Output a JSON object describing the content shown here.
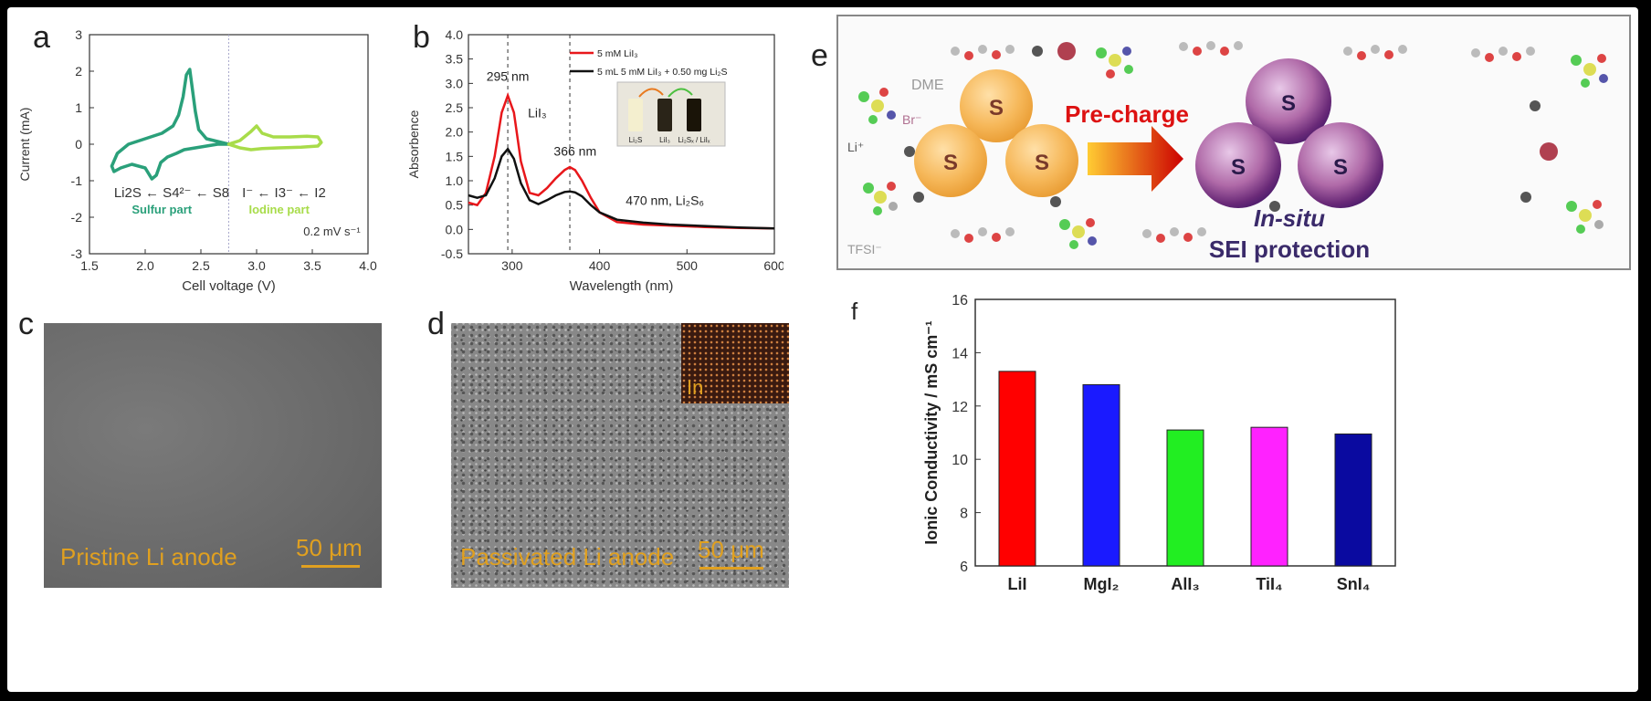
{
  "panel_labels": {
    "a": "a",
    "b": "b",
    "c": "c",
    "d": "d",
    "e": "e",
    "f": "f"
  },
  "colors": {
    "cv_sulfur": "#2aa07a",
    "cv_iodine": "#a8dc4a",
    "uv_red": "#e8171b",
    "uv_black": "#111111",
    "bar_LiI": "#ff0000",
    "bar_MgI2": "#1a1aff",
    "bar_AlI3": "#22ee22",
    "bar_TiI4": "#ff22ff",
    "bar_SnI4": "#0a0aa0",
    "label_gold": "#e0a020"
  },
  "chart_data": [
    {
      "id": "a",
      "type": "line",
      "xlabel": "Cell voltage (V)",
      "ylabel": "Current (mA)",
      "xlim": [
        1.5,
        4.0
      ],
      "ylim": [
        -3,
        3
      ],
      "xticks": [
        "1.5",
        "2.0",
        "2.5",
        "3.0",
        "3.5",
        "4.0"
      ],
      "yticks": [
        "-3",
        "-2",
        "-1",
        "0",
        "1",
        "2",
        "3"
      ],
      "series": [
        {
          "name": "Sulfur part",
          "x": [
            2.75,
            2.55,
            2.48,
            2.45,
            2.42,
            2.4,
            2.37,
            2.34,
            2.3,
            2.25,
            2.15,
            2.0,
            1.85,
            1.75,
            1.7,
            1.72,
            1.78,
            1.88,
            2.0,
            2.06,
            2.1,
            2.14,
            2.2,
            2.28,
            2.35,
            2.45,
            2.55,
            2.65,
            2.75
          ],
          "y": [
            0.0,
            0.15,
            0.4,
            0.9,
            1.6,
            2.05,
            1.9,
            1.3,
            0.8,
            0.5,
            0.3,
            0.15,
            0.0,
            -0.25,
            -0.6,
            -0.75,
            -0.65,
            -0.55,
            -0.65,
            -0.95,
            -0.85,
            -0.5,
            -0.35,
            -0.25,
            -0.15,
            -0.1,
            -0.05,
            0.0,
            0.0
          ]
        },
        {
          "name": "Iodine part",
          "x": [
            2.75,
            2.85,
            2.95,
            3.0,
            3.05,
            3.15,
            3.3,
            3.45,
            3.55,
            3.58,
            3.55,
            3.4,
            3.2,
            3.05,
            2.95,
            2.85,
            2.75
          ],
          "y": [
            0.0,
            0.1,
            0.35,
            0.5,
            0.3,
            0.2,
            0.2,
            0.22,
            0.2,
            0.05,
            -0.05,
            -0.08,
            -0.1,
            -0.12,
            -0.15,
            -0.1,
            0.0
          ]
        }
      ],
      "annotations": {
        "sulfur_chain": "Li2S ← S4²⁻ ← S8",
        "iodine_chain": "I⁻ ← I3⁻ ← I2",
        "sulfur_label": "Sulfur part",
        "iodine_label": "Iodine part",
        "scan_rate": "0.2 mV s⁻¹"
      }
    },
    {
      "id": "b",
      "type": "line",
      "xlabel": "Wavelength (nm)",
      "ylabel": "Absorbence",
      "xlim": [
        250,
        600
      ],
      "ylim": [
        -0.5,
        4.0
      ],
      "xticks": [
        "300",
        "400",
        "500",
        "600"
      ],
      "yticks": [
        "-0.5",
        "0.0",
        "0.5",
        "1.0",
        "1.5",
        "2.0",
        "2.5",
        "3.0",
        "3.5",
        "4.0"
      ],
      "series": [
        {
          "name": "5 mM LiI₃",
          "x": [
            250,
            260,
            270,
            280,
            288,
            295,
            302,
            310,
            320,
            330,
            340,
            350,
            360,
            366,
            372,
            380,
            390,
            400,
            420,
            450,
            480,
            520,
            560,
            600
          ],
          "y": [
            0.55,
            0.5,
            0.75,
            1.5,
            2.4,
            2.75,
            2.4,
            1.4,
            0.75,
            0.7,
            0.85,
            1.05,
            1.22,
            1.28,
            1.22,
            1.0,
            0.65,
            0.35,
            0.15,
            0.1,
            0.08,
            0.05,
            0.03,
            0.02
          ]
        },
        {
          "name": "5 mL 5 mM LiI₃ + 0.50 mg Li₂S",
          "x": [
            250,
            260,
            270,
            280,
            288,
            295,
            302,
            310,
            320,
            330,
            340,
            350,
            360,
            366,
            372,
            380,
            390,
            400,
            420,
            450,
            480,
            520,
            560,
            600
          ],
          "y": [
            0.7,
            0.65,
            0.7,
            1.05,
            1.5,
            1.65,
            1.45,
            0.95,
            0.6,
            0.52,
            0.6,
            0.7,
            0.77,
            0.78,
            0.76,
            0.68,
            0.5,
            0.35,
            0.2,
            0.14,
            0.1,
            0.07,
            0.04,
            0.02
          ]
        }
      ],
      "annotations": {
        "peak1": "295 nm",
        "peak2": "366 nm",
        "species": "LiI₃",
        "li2s6": "470 nm, Li₂S₆",
        "inset_labels": [
          "Li₂S",
          "LiI₃",
          "Li₂Sₓ / LiIₓ"
        ]
      }
    },
    {
      "id": "f",
      "type": "bar",
      "categories": [
        "LiI",
        "MgI₂",
        "AlI₃",
        "TiI₄",
        "SnI₄"
      ],
      "values": [
        13.3,
        12.8,
        11.1,
        11.2,
        10.95
      ],
      "ylabel": "Ionic Conductivity / mS cm⁻¹",
      "ylim": [
        6,
        16
      ],
      "yticks": [
        "6",
        "8",
        "10",
        "12",
        "14",
        "16"
      ]
    }
  ],
  "panel_c": {
    "caption": "Pristine Li anode",
    "scale": "50 μm"
  },
  "panel_d": {
    "caption": "Passivated Li anode",
    "scale": "50 μm",
    "inset": "In"
  },
  "panel_e": {
    "s_label": "S",
    "arrow_text": "Pre-charge",
    "insitu": "In-situ",
    "sei": "SEI protection",
    "dme": "DME",
    "br": "Br⁻",
    "li": "Li⁺",
    "tfsi": "TFSI⁻"
  }
}
